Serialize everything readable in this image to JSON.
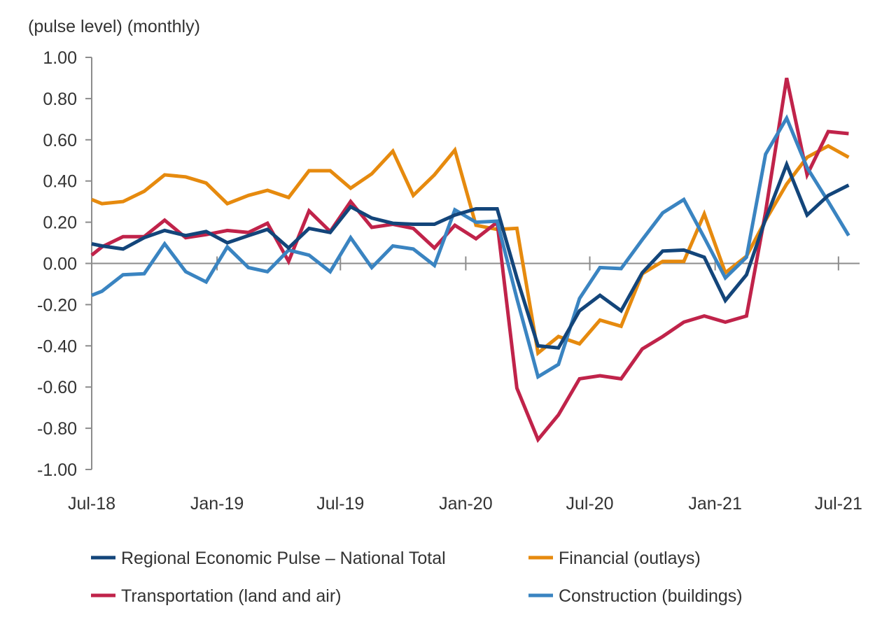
{
  "chart_data": {
    "type": "line",
    "title": "",
    "ylabel": "(pulse level) (monthly)",
    "xlabel": "",
    "ylim": [
      -1.0,
      1.0
    ],
    "yticks": [
      "1.00",
      "0.80",
      "0.60",
      "0.40",
      "0.20",
      "0.00",
      "-0.20",
      "-0.40",
      "-0.60",
      "-0.80",
      "-1.00"
    ],
    "ytick_values": [
      1.0,
      0.8,
      0.6,
      0.4,
      0.2,
      0.0,
      -0.2,
      -0.4,
      -0.6,
      -0.8,
      -1.0
    ],
    "xticks": [
      "Jul-18",
      "Jan-19",
      "Jul-19",
      "Jan-20",
      "Jul-20",
      "Jan-21",
      "Jul-21"
    ],
    "xtick_dates": [
      "2018-07-01",
      "2019-01-01",
      "2019-07-01",
      "2020-01-01",
      "2020-07-01",
      "2021-01-01",
      "2021-07-01"
    ],
    "xlim": [
      "2018-07-01",
      "2021-08-01"
    ],
    "grid": false,
    "legend_position": "bottom",
    "x": [
      "2018-07-01",
      "2018-07-16",
      "2018-08-16",
      "2018-09-16",
      "2018-10-16",
      "2018-11-16",
      "2018-12-16",
      "2019-01-16",
      "2019-02-16",
      "2019-03-16",
      "2019-04-16",
      "2019-05-16",
      "2019-06-16",
      "2019-07-16",
      "2019-08-16",
      "2019-09-16",
      "2019-10-16",
      "2019-11-16",
      "2019-12-16",
      "2020-01-16",
      "2020-02-16",
      "2020-03-16",
      "2020-04-16",
      "2020-05-16",
      "2020-06-16",
      "2020-07-16",
      "2020-08-16",
      "2020-09-16",
      "2020-10-16",
      "2020-11-16",
      "2020-12-16",
      "2021-01-16",
      "2021-02-16",
      "2021-03-16",
      "2021-04-16",
      "2021-05-16",
      "2021-06-16",
      "2021-07-16"
    ],
    "series": [
      {
        "name": "Regional Economic Pulse – National Total",
        "color": "#13457a",
        "values": [
          0.095,
          0.085,
          0.07,
          0.125,
          0.16,
          0.135,
          0.155,
          0.1,
          0.135,
          0.165,
          0.075,
          0.17,
          0.15,
          0.275,
          0.22,
          0.195,
          0.19,
          0.19,
          0.235,
          0.265,
          0.265,
          -0.07,
          -0.4,
          -0.41,
          -0.23,
          -0.155,
          -0.23,
          -0.045,
          0.06,
          0.065,
          0.03,
          -0.18,
          -0.055,
          0.215,
          0.48,
          0.235,
          0.33,
          0.38
        ]
      },
      {
        "name": "Financial (outlays)",
        "color": "#e68a0e",
        "values": [
          0.31,
          0.29,
          0.3,
          0.35,
          0.43,
          0.42,
          0.39,
          0.29,
          0.33,
          0.355,
          0.32,
          0.45,
          0.45,
          0.365,
          0.435,
          0.545,
          0.33,
          0.43,
          0.55,
          0.185,
          0.165,
          0.17,
          -0.435,
          -0.355,
          -0.39,
          -0.275,
          -0.305,
          -0.05,
          0.01,
          0.01,
          0.24,
          -0.045,
          0.035,
          0.21,
          0.385,
          0.515,
          0.57,
          0.515
        ]
      },
      {
        "name": "Transportation (land and air)",
        "color": "#c0234a",
        "values": [
          0.04,
          0.08,
          0.13,
          0.13,
          0.21,
          0.125,
          0.14,
          0.16,
          0.15,
          0.195,
          0.01,
          0.255,
          0.155,
          0.3,
          0.175,
          0.19,
          0.17,
          0.075,
          0.185,
          0.12,
          0.2,
          -0.605,
          -0.855,
          -0.735,
          -0.56,
          -0.545,
          -0.56,
          -0.415,
          -0.355,
          -0.285,
          -0.255,
          -0.285,
          -0.255,
          0.25,
          0.9,
          0.43,
          0.64,
          0.63
        ]
      },
      {
        "name": "Construction (buildings)",
        "color": "#3a84c1",
        "values": [
          -0.155,
          -0.135,
          -0.055,
          -0.05,
          0.095,
          -0.04,
          -0.09,
          0.08,
          -0.02,
          -0.04,
          0.065,
          0.04,
          -0.04,
          0.125,
          -0.02,
          0.085,
          0.07,
          -0.01,
          0.26,
          0.2,
          0.205,
          -0.17,
          -0.55,
          -0.49,
          -0.17,
          -0.02,
          -0.025,
          0.115,
          0.245,
          0.31,
          0.125,
          -0.07,
          0.03,
          0.53,
          0.705,
          0.465,
          0.3,
          0.135
        ]
      }
    ]
  }
}
